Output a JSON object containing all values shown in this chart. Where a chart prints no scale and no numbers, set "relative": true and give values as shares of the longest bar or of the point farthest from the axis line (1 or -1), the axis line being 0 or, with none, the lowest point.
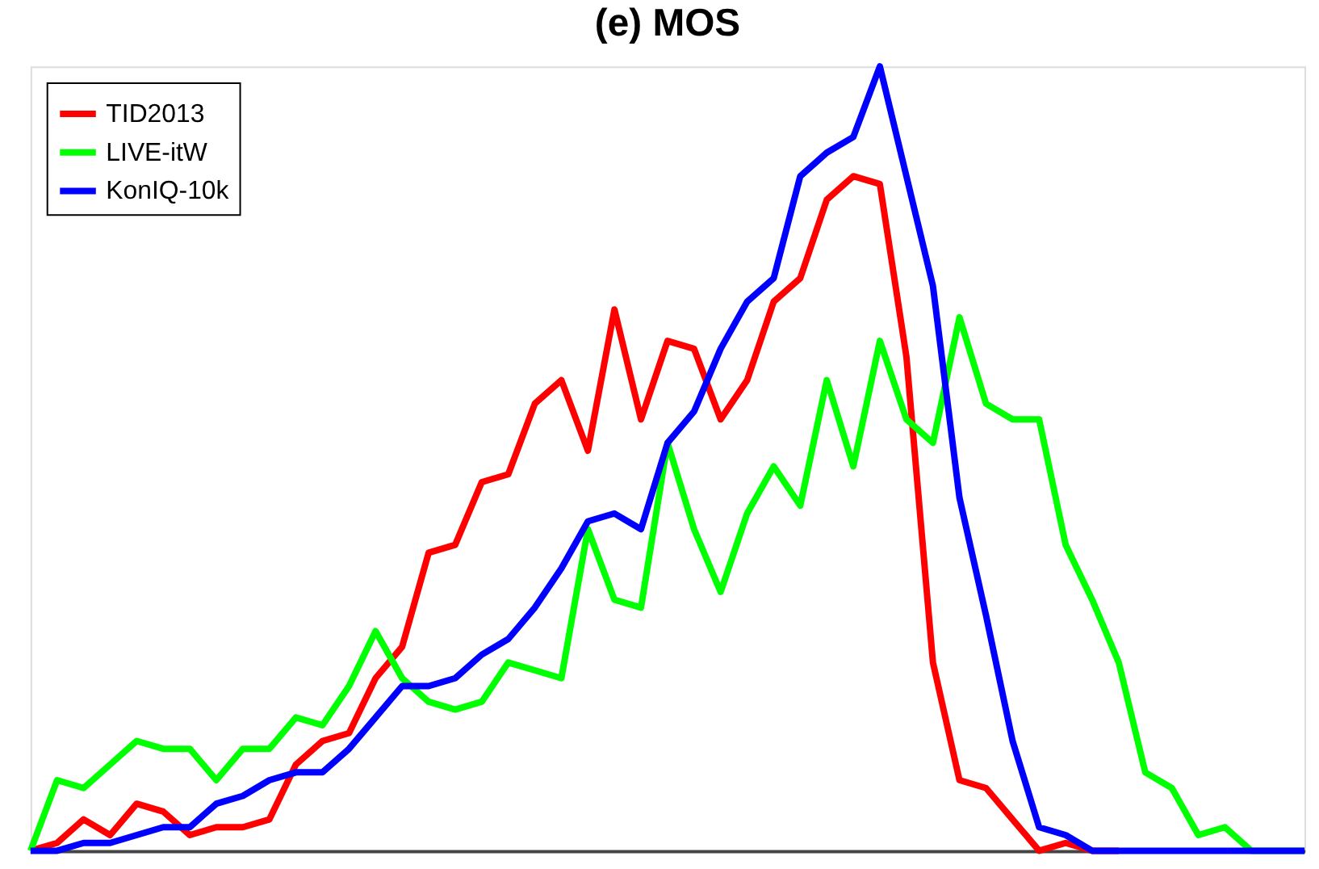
{
  "chart_data": {
    "type": "line",
    "title": "(e) MOS",
    "relative": true,
    "legend": "top left",
    "grid": false,
    "marker": "none",
    "line_style": "solid",
    "tick_labels": false,
    "categories": [
      null,
      null,
      null,
      null,
      null,
      null,
      null,
      null,
      null,
      null,
      null,
      null,
      null,
      null,
      null,
      null,
      null,
      null,
      null,
      null,
      null,
      null,
      null,
      null,
      null,
      null,
      null,
      null,
      null,
      null,
      null,
      null,
      null,
      null,
      null,
      null,
      null,
      null,
      null,
      null,
      null,
      null,
      null,
      null,
      null,
      null,
      null,
      null,
      null
    ],
    "series": [
      {
        "name": "TID2013",
        "color": "#ff0000",
        "values": [
          0.0,
          0.01,
          0.04,
          0.02,
          0.06,
          0.05,
          0.02,
          0.03,
          0.03,
          0.04,
          0.11,
          0.14,
          0.15,
          0.22,
          0.26,
          0.38,
          0.39,
          0.47,
          0.48,
          0.57,
          0.6,
          0.51,
          0.69,
          0.55,
          0.65,
          0.64,
          0.55,
          0.6,
          0.7,
          0.73,
          0.83,
          0.86,
          0.85,
          0.63,
          0.24,
          0.09,
          0.08,
          0.04,
          0,
          0.01,
          0,
          0,
          null,
          null,
          null,
          null,
          null,
          null,
          null
        ]
      },
      {
        "name": "LIVE-itW",
        "color": "#00ff00",
        "values": [
          0.0,
          0.09,
          0.08,
          0.11,
          0.14,
          0.13,
          0.13,
          0.09,
          0.13,
          0.13,
          0.17,
          0.16,
          0.21,
          0.28,
          0.22,
          0.19,
          0.18,
          0.19,
          0.24,
          0.23,
          0.22,
          0.41,
          0.32,
          0.31,
          0.52,
          0.41,
          0.33,
          0.43,
          0.49,
          0.44,
          0.6,
          0.49,
          0.65,
          0.55,
          0.52,
          0.68,
          0.57,
          0.55,
          0.55,
          0.39,
          0.32,
          0.24,
          0.1,
          0.08,
          0.02,
          0.03,
          0,
          0,
          0
        ]
      },
      {
        "name": "KonIQ-10k",
        "color": "#0000ff",
        "values": [
          0,
          0.0,
          0.01,
          0.01,
          0.02,
          0.03,
          0.03,
          0.06,
          0.07,
          0.09,
          0.1,
          0.1,
          0.13,
          0.17,
          0.21,
          0.21,
          0.22,
          0.25,
          0.27,
          0.31,
          0.36,
          0.42,
          0.43,
          0.41,
          0.52,
          0.56,
          0.64,
          0.7,
          0.73,
          0.86,
          0.89,
          0.91,
          1.0,
          0.86,
          0.72,
          0.45,
          0.3,
          0.14,
          0.03,
          0.02,
          0.0,
          0,
          0,
          0,
          0,
          0,
          0,
          0,
          0
        ]
      }
    ]
  }
}
